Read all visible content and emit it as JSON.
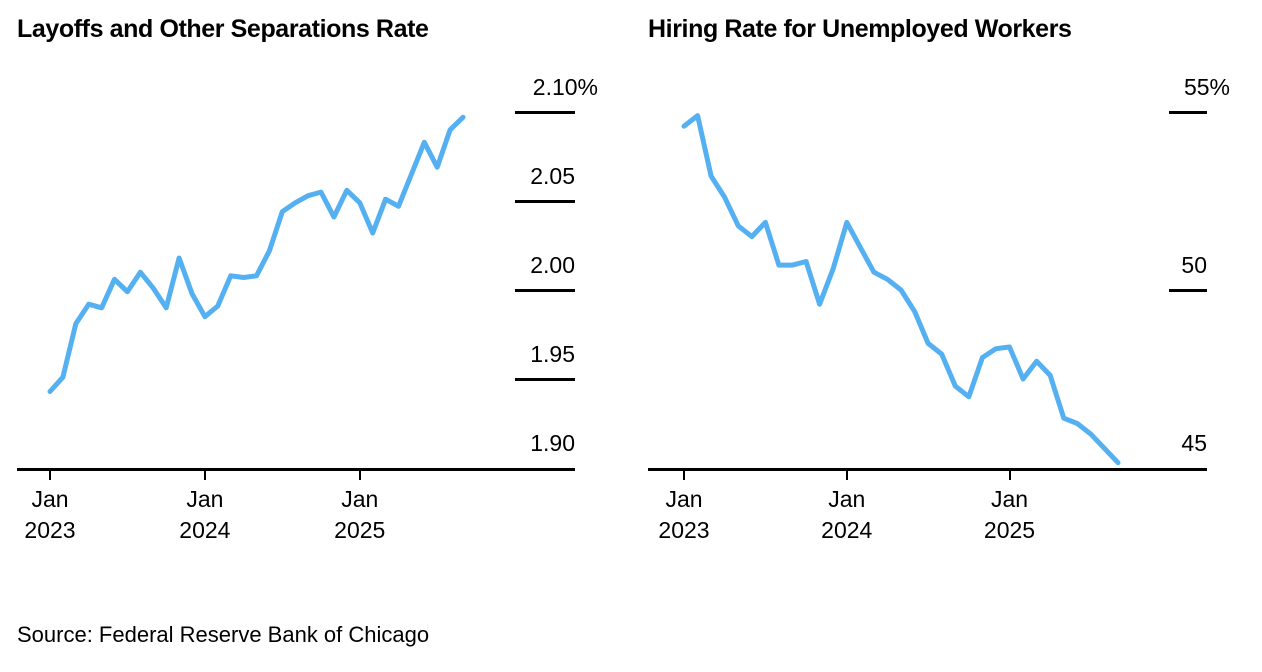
{
  "page": {
    "background_color": "#ffffff",
    "text_color": "#000000",
    "source": "Source: Federal Reserve Bank of Chicago"
  },
  "chart_data": [
    {
      "type": "line",
      "title": "Layoffs and Other Separations Rate",
      "unit": "percent",
      "line_color": "#55b0f2",
      "grid": "short underline ticks beside y-labels, right side",
      "legend_position": "none",
      "ylim": [
        1.9,
        2.12
      ],
      "x": [
        "2023-01",
        "2023-02",
        "2023-03",
        "2023-04",
        "2023-05",
        "2023-06",
        "2023-07",
        "2023-08",
        "2023-09",
        "2023-10",
        "2023-11",
        "2023-12",
        "2024-01",
        "2024-02",
        "2024-03",
        "2024-04",
        "2024-05",
        "2024-06",
        "2024-07",
        "2024-08",
        "2024-09",
        "2024-10",
        "2024-11",
        "2024-12",
        "2025-01",
        "2025-02",
        "2025-03",
        "2025-04",
        "2025-05",
        "2025-06",
        "2025-07",
        "2025-08",
        "2025-09"
      ],
      "values": [
        1.943,
        1.951,
        1.981,
        1.992,
        1.99,
        2.006,
        1.999,
        2.01,
        2.001,
        1.99,
        2.018,
        1.998,
        1.985,
        1.991,
        2.008,
        2.007,
        2.008,
        2.022,
        2.044,
        2.049,
        2.053,
        2.055,
        2.041,
        2.056,
        2.049,
        2.032,
        2.051,
        2.047,
        2.065,
        2.083,
        2.069,
        2.09,
        2.097
      ],
      "y_ticks": [
        {
          "label": "2.10%",
          "value": 2.1
        },
        {
          "label": "2.05",
          "value": 2.05
        },
        {
          "label": "2.00",
          "value": 2.0
        },
        {
          "label": "1.95",
          "value": 1.95
        },
        {
          "label": "1.90",
          "value": 1.9
        }
      ],
      "x_ticks": [
        {
          "line1": "Jan",
          "line2": "2023",
          "month_index": 0
        },
        {
          "line1": "Jan",
          "line2": "2024",
          "month_index": 12
        },
        {
          "line1": "Jan",
          "line2": "2025",
          "month_index": 24
        }
      ]
    },
    {
      "type": "line",
      "title": "Hiring Rate for Unemployed Workers",
      "unit": "percent",
      "line_color": "#55b0f2",
      "grid": "short underline ticks beside y-labels, right side",
      "legend_position": "none",
      "ylim": [
        45,
        55.5
      ],
      "x": [
        "2023-01",
        "2023-02",
        "2023-03",
        "2023-04",
        "2023-05",
        "2023-06",
        "2023-07",
        "2023-08",
        "2023-09",
        "2023-10",
        "2023-11",
        "2023-12",
        "2024-01",
        "2024-02",
        "2024-03",
        "2024-04",
        "2024-05",
        "2024-06",
        "2024-07",
        "2024-08",
        "2024-09",
        "2024-10",
        "2024-11",
        "2024-12",
        "2025-01",
        "2025-02",
        "2025-03",
        "2025-04",
        "2025-05",
        "2025-06",
        "2025-07",
        "2025-08",
        "2025-09"
      ],
      "values": [
        54.6,
        54.9,
        53.2,
        52.6,
        51.8,
        51.5,
        51.9,
        50.7,
        50.7,
        50.8,
        49.6,
        50.6,
        51.9,
        51.2,
        50.5,
        50.3,
        50.0,
        49.4,
        48.5,
        48.2,
        47.3,
        47.0,
        48.1,
        48.35,
        48.4,
        47.5,
        48.0,
        47.6,
        46.4,
        46.25,
        45.95,
        45.55,
        45.15
      ],
      "y_ticks": [
        {
          "label": "55%",
          "value": 55
        },
        {
          "label": "50",
          "value": 50
        },
        {
          "label": "45",
          "value": 45
        }
      ],
      "x_ticks": [
        {
          "line1": "Jan",
          "line2": "2023",
          "month_index": 0
        },
        {
          "line1": "Jan",
          "line2": "2024",
          "month_index": 12
        },
        {
          "line1": "Jan",
          "line2": "2025",
          "month_index": 24
        }
      ]
    }
  ]
}
